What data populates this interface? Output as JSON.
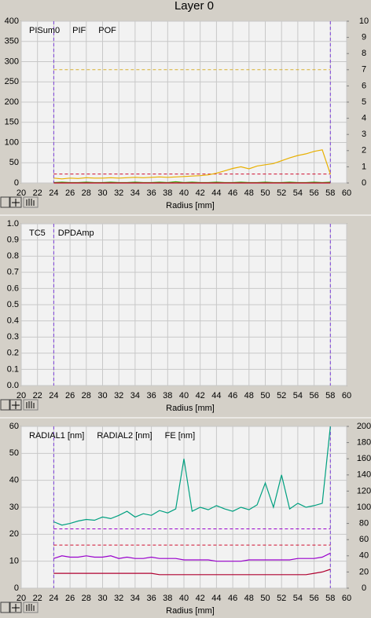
{
  "title": "Layer 0",
  "chart_data": [
    {
      "type": "line",
      "xlabel": "Radius [mm]",
      "xlim": [
        20,
        60
      ],
      "xticks": [
        20,
        22,
        24,
        26,
        28,
        30,
        32,
        34,
        36,
        38,
        40,
        42,
        44,
        46,
        48,
        50,
        52,
        54,
        56,
        58,
        60
      ],
      "ylim": [
        0,
        400
      ],
      "yticks": [
        0,
        50,
        100,
        150,
        200,
        250,
        300,
        350,
        400
      ],
      "y2lim": [
        0,
        10
      ],
      "y2ticks": [
        0,
        1,
        2,
        3,
        4,
        5,
        6,
        7,
        8,
        9,
        10
      ],
      "grid": true,
      "vlines": [
        24,
        58
      ],
      "vline_color": "#7b3fd8",
      "hlines": [
        {
          "value": 280,
          "color": "#d8b030"
        },
        {
          "value": 22,
          "color": "#d01030"
        }
      ],
      "x": [
        24,
        25,
        26,
        27,
        28,
        29,
        30,
        31,
        32,
        33,
        34,
        35,
        36,
        37,
        38,
        39,
        40,
        41,
        42,
        43,
        44,
        45,
        46,
        47,
        48,
        49,
        50,
        51,
        52,
        53,
        54,
        55,
        56,
        57,
        58
      ],
      "series": [
        {
          "name": "PISum0",
          "color": "#e8b000",
          "values": [
            12,
            10,
            12,
            11,
            13,
            12,
            12,
            13,
            12,
            13,
            14,
            13,
            14,
            15,
            14,
            15,
            16,
            17,
            18,
            20,
            24,
            30,
            36,
            40,
            35,
            42,
            45,
            48,
            55,
            62,
            68,
            72,
            78,
            82,
            22
          ]
        },
        {
          "name": "PIF",
          "color": "#33aa00",
          "values": [
            1,
            2,
            1,
            1,
            2,
            1,
            1,
            2,
            1,
            1,
            2,
            1,
            1,
            2,
            1,
            3,
            1,
            2,
            1,
            1,
            2,
            1,
            1,
            2,
            1,
            1,
            2,
            1,
            1,
            2,
            1,
            1,
            2,
            1,
            2
          ]
        },
        {
          "name": "POF",
          "color": "#cc0033",
          "values": [
            0,
            0,
            0,
            0,
            0,
            0,
            0,
            0,
            0,
            0,
            0,
            0,
            0,
            0,
            0,
            0,
            0,
            0,
            0,
            0,
            0,
            0,
            0,
            0,
            0,
            0,
            0,
            0,
            0,
            0,
            0,
            0,
            0,
            0,
            0
          ]
        }
      ]
    },
    {
      "type": "line",
      "xlabel": "Radius [mm]",
      "xlim": [
        20,
        60
      ],
      "xticks": [
        20,
        22,
        24,
        26,
        28,
        30,
        32,
        34,
        36,
        38,
        40,
        42,
        44,
        46,
        48,
        50,
        52,
        54,
        56,
        58,
        60
      ],
      "ylim": [
        0,
        1
      ],
      "yticks": [
        {
          "value": 0,
          "label": "0.0"
        },
        0.1,
        0.2,
        0.3,
        0.4,
        0.5,
        0.6,
        0.7,
        0.8,
        0.9,
        {
          "value": 1,
          "label": "1.0"
        }
      ],
      "grid": true,
      "vlines": [
        24,
        58
      ],
      "vline_color": "#7b3fd8",
      "hlines": [],
      "x": [],
      "series": [
        {
          "name": "TC5",
          "color": "#336600",
          "values": []
        },
        {
          "name": "DPDAmp",
          "color": "#990000",
          "values": []
        }
      ]
    },
    {
      "type": "line",
      "xlabel": "Radius [mm]",
      "xlim": [
        20,
        60
      ],
      "xticks": [
        20,
        22,
        24,
        26,
        28,
        30,
        32,
        34,
        36,
        38,
        40,
        42,
        44,
        46,
        48,
        50,
        52,
        54,
        56,
        58,
        60
      ],
      "ylim": [
        0,
        60
      ],
      "yticks": [
        0,
        10,
        20,
        30,
        40,
        50,
        60
      ],
      "y2lim": [
        0,
        200
      ],
      "y2ticks": [
        0,
        20,
        40,
        60,
        80,
        100,
        120,
        140,
        160,
        180,
        200
      ],
      "grid": true,
      "vlines": [
        24,
        58
      ],
      "vline_color": "#7b3fd8",
      "hlines": [
        {
          "value": 22,
          "color": "#9900cc"
        },
        {
          "value": 16,
          "color": "#d01030"
        }
      ],
      "x": [
        24,
        25,
        26,
        27,
        28,
        29,
        30,
        31,
        32,
        33,
        34,
        35,
        36,
        37,
        38,
        39,
        40,
        41,
        42,
        43,
        44,
        45,
        46,
        47,
        48,
        49,
        50,
        51,
        52,
        53,
        54,
        55,
        56,
        57,
        58
      ],
      "series": [
        {
          "name": "RADIAL1 [nm]",
          "color": "#9900cc",
          "values": [
            11,
            12,
            11.5,
            11.5,
            12,
            11.5,
            11.5,
            12,
            11,
            11.5,
            11,
            11,
            11.5,
            11,
            11,
            11,
            10.5,
            10.5,
            10.5,
            10.5,
            10,
            10,
            10,
            10,
            10.5,
            10.5,
            10.5,
            10.5,
            10.5,
            10.5,
            11,
            11,
            11,
            11.5,
            13
          ]
        },
        {
          "name": "RADIAL2 [nm]",
          "color": "#b00030",
          "values": [
            5.5,
            5.5,
            5.5,
            5.5,
            5.5,
            5.5,
            5.5,
            5.5,
            5.5,
            5.5,
            5.5,
            5.5,
            5.5,
            5,
            5,
            5,
            5,
            5,
            5,
            5,
            5,
            5,
            5,
            5,
            5,
            5,
            5,
            5,
            5,
            5,
            5,
            5,
            5.5,
            6,
            7
          ]
        },
        {
          "name": "FE [nm]",
          "color": "#00a080",
          "axis": "y2",
          "values": [
            82,
            78,
            80,
            83,
            85,
            84,
            88,
            86,
            90,
            95,
            88,
            92,
            90,
            96,
            93,
            98,
            160,
            95,
            100,
            97,
            102,
            98,
            95,
            100,
            97,
            103,
            130,
            100,
            140,
            98,
            105,
            100,
            102,
            105,
            200
          ]
        }
      ]
    }
  ]
}
